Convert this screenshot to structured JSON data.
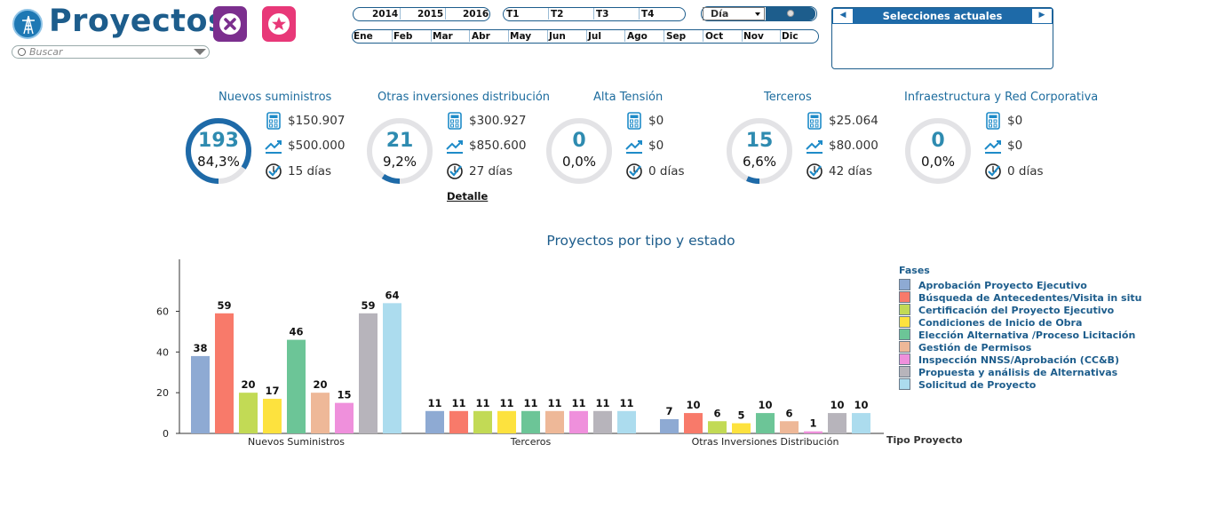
{
  "app": {
    "title": "Proyectos",
    "search_placeholder": "Buscar"
  },
  "filters": {
    "years": [
      "2014",
      "2015",
      "2016"
    ],
    "quarters": [
      "T1",
      "T2",
      "T3",
      "T4"
    ],
    "months": [
      "Ene",
      "Feb",
      "Mar",
      "Abr",
      "May",
      "Jun",
      "Jul",
      "Ago",
      "Sep",
      "Oct",
      "Nov",
      "Dic"
    ],
    "granularity": "Día"
  },
  "current_selections": {
    "title": "Selecciones actuales"
  },
  "kpis": [
    {
      "title": "Nuevos suministros",
      "count": "193",
      "percent": "84,3%",
      "percent_value": 0.843,
      "cost": "$150.907",
      "budget": "$500.000",
      "days": "15 días"
    },
    {
      "title": "Otras inversiones distribución",
      "count": "21",
      "percent": "9,2%",
      "percent_value": 0.092,
      "cost": "$300.927",
      "budget": "$850.600",
      "days": "27 días"
    },
    {
      "title": "Alta Tensión",
      "count": "0",
      "percent": "0,0%",
      "percent_value": 0.0,
      "cost": "$0",
      "budget": "$0",
      "days": "0 días"
    },
    {
      "title": "Terceros",
      "count": "15",
      "percent": "6,6%",
      "percent_value": 0.066,
      "cost": "$25.064",
      "budget": "$80.000",
      "days": "42 días"
    },
    {
      "title": "Infraestructura y Red Corporativa",
      "count": "0",
      "percent": "0,0%",
      "percent_value": 0.0,
      "cost": "$0",
      "budget": "$0",
      "days": "0 días"
    }
  ],
  "detail_link": "Detalle",
  "chart_title": "Proyectos por tipo y estado",
  "chart_data": {
    "type": "bar",
    "title": "Proyectos por tipo y estado",
    "xlabel": "Tipo Proyecto",
    "ylabel": "",
    "ylim": [
      0,
      80
    ],
    "yticks": [
      0,
      20,
      40,
      60
    ],
    "grid": false,
    "legend_title": "Fases",
    "legend_position": "right",
    "categories": [
      "Nuevos Suministros",
      "Terceros",
      "Otras Inversiones Distribución"
    ],
    "series": [
      {
        "name": "Aprobación Proyecto Ejecutivo",
        "color": "#8eaad3",
        "values": [
          38,
          11,
          7
        ]
      },
      {
        "name": "Búsqueda de Antecedentes/Visita in situ",
        "color": "#f87a6a",
        "values": [
          59,
          11,
          10
        ]
      },
      {
        "name": "Certificación del Proyecto Ejecutivo",
        "color": "#c2da55",
        "values": [
          20,
          11,
          6
        ]
      },
      {
        "name": "Condiciones de Inicio de Obra",
        "color": "#fde23e",
        "values": [
          17,
          11,
          5
        ]
      },
      {
        "name": "Elección Alternativa /Proceso Licitación",
        "color": "#6cc597",
        "values": [
          46,
          11,
          10
        ]
      },
      {
        "name": "Gestión de Permisos",
        "color": "#eeb898",
        "values": [
          20,
          11,
          6
        ]
      },
      {
        "name": "Inspección NNSS/Aprobación (CC&B)",
        "color": "#ef90dc",
        "values": [
          15,
          11,
          1
        ]
      },
      {
        "name": "Propuesta y análisis de Alternativas",
        "color": "#b7b4bb",
        "values": [
          59,
          11,
          10
        ]
      },
      {
        "name": "Solicitud de Proyecto",
        "color": "#acdcee",
        "values": [
          64,
          11,
          10
        ]
      }
    ]
  },
  "colors": {
    "brand": "#1d5d8c",
    "accent": "#1e6aa8",
    "clear_button": "#7b2f8e",
    "favorite_button": "#e83878",
    "gauge_track": "#e3e3e6",
    "gauge_fill": "#1e6aa8"
  }
}
